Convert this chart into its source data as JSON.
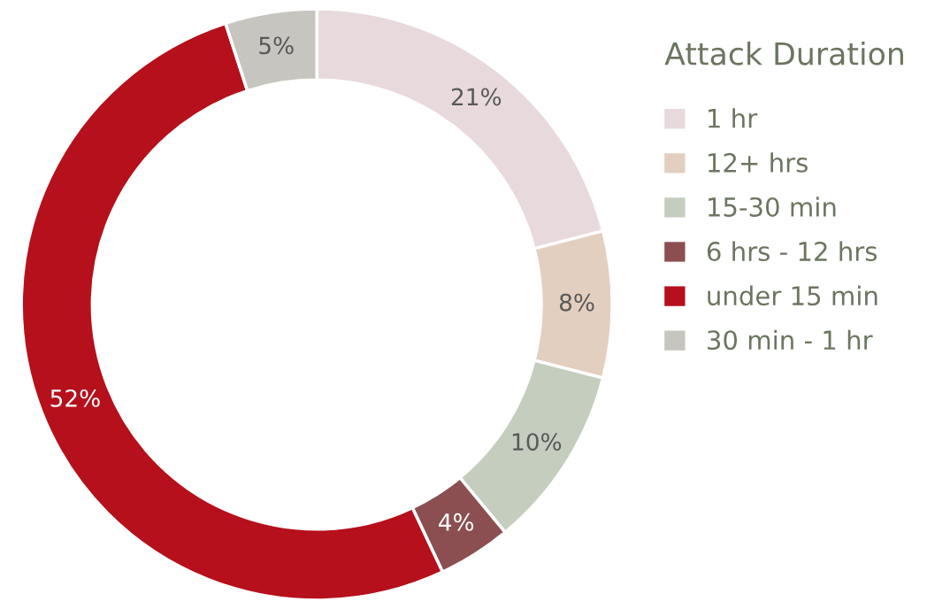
{
  "chart_data": {
    "type": "donut",
    "legend_title": "Attack Duration",
    "categories": [
      "1 hr",
      "12+ hrs",
      "15-30 min",
      "6 hrs - 12 hrs",
      "under 15 min",
      "30 min - 1 hr"
    ],
    "values": [
      21,
      8,
      10,
      4,
      52,
      5
    ],
    "colors": [
      "#e8dadc",
      "#e3cfc0",
      "#c5cdbf",
      "#8b4f52",
      "#b5101c",
      "#c6c5bf"
    ],
    "value_labels": [
      "21%",
      "8%",
      "10%",
      "4%",
      "52%",
      "5%"
    ],
    "legend": "right"
  }
}
